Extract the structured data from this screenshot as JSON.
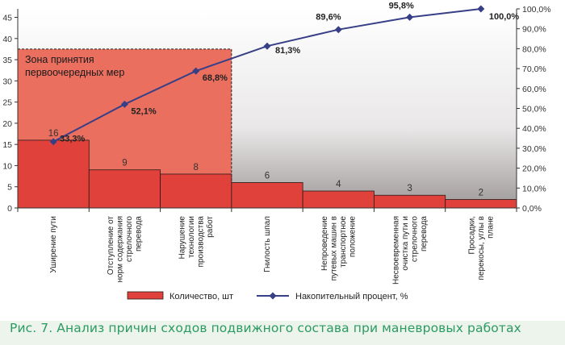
{
  "chart_data": {
    "type": "bar",
    "title": "",
    "categories": [
      "Уширение пути",
      "Отступление от норм содержания стрелочного перевода",
      "Нарушение технологии производства работ",
      "Гнилость шпал",
      "Непроведение путевых машин в транспортное положение",
      "Несвоевременная очистка пути и стрелочного перевода",
      "Просадки, перекосы, углы в плане"
    ],
    "category_lines": [
      [
        "Уширение пути"
      ],
      [
        "Отступление от",
        "норм содержания",
        "стрелочного",
        "перевода"
      ],
      [
        "Нарушение",
        "технологии",
        "производства",
        "работ"
      ],
      [
        "Гнилость шпал"
      ],
      [
        "Непроведение",
        "путевых машин в",
        "транспортное",
        "положение"
      ],
      [
        "Несвоевременная",
        "очистка пути и",
        "стрелочного",
        "перевода"
      ],
      [
        "Просадки,",
        "перекосы, углы в",
        "плане"
      ]
    ],
    "series": [
      {
        "name": "Количество, шт",
        "type": "bar",
        "axis": "left",
        "values": [
          16,
          9,
          8,
          6,
          4,
          3,
          2
        ],
        "labels": [
          "16",
          "9",
          "8",
          "6",
          "4",
          "3",
          "2"
        ]
      },
      {
        "name": "Накопительный процент, %",
        "type": "line",
        "axis": "right",
        "values": [
          33.3,
          52.1,
          68.8,
          81.3,
          89.6,
          95.8,
          100.0
        ],
        "labels": [
          "33,3%",
          "52,1%",
          "68,8%",
          "81,3%",
          "89,6%",
          "95,8%",
          "100,0%"
        ]
      }
    ],
    "ylim": [
      0,
      47
    ],
    "yticks": [
      0,
      5,
      10,
      15,
      20,
      25,
      30,
      35,
      40,
      45
    ],
    "ylim_right": [
      0,
      100
    ],
    "yticks_right": [
      "0,0%",
      "10,0%",
      "20,0%",
      "30,0%",
      "40,0%",
      "50,0%",
      "60,0%",
      "70,0%",
      "80,0%",
      "90,0%",
      "100,0%"
    ],
    "zone": {
      "label_lines": [
        "Зона принятия",
        "первоочередных мер"
      ],
      "category_count": 3,
      "upper_value": 37.5
    },
    "colors": {
      "bar": "#e0413a",
      "bar_edge": "#2a1a1a",
      "line": "#373f86",
      "zone": "#ea6f5f",
      "caption": "#2c9a63"
    }
  },
  "caption": "Рис. 7. Анализ причин сходов подвижного состава при маневровых работах"
}
